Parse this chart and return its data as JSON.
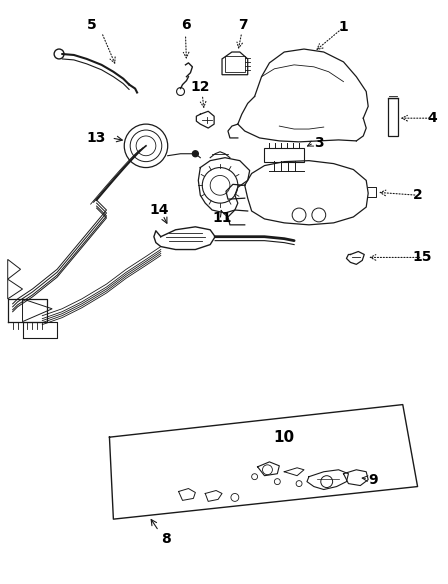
{
  "background_color": "#ffffff",
  "line_color": "#1a1a1a",
  "label_color": "#000000",
  "fig_width": 4.48,
  "fig_height": 5.84,
  "dpi": 100
}
